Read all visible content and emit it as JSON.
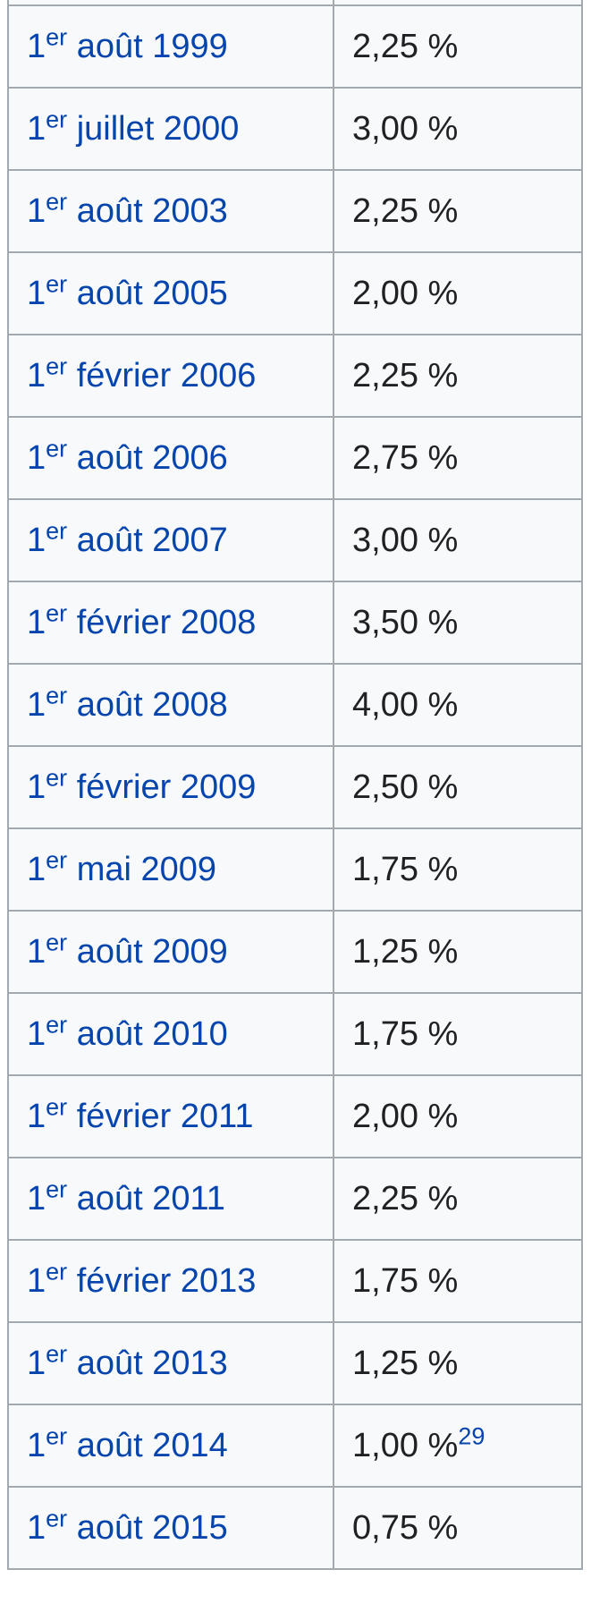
{
  "table": {
    "rows": [
      {
        "day": "",
        "ord": "",
        "rest": "",
        "rate": "",
        "ref": ""
      },
      {
        "day": "1",
        "ord": "er",
        "rest": " août 1999",
        "rate": "2,25 %",
        "ref": ""
      },
      {
        "day": "1",
        "ord": "er",
        "rest": " juillet 2000",
        "rate": "3,00 %",
        "ref": ""
      },
      {
        "day": "1",
        "ord": "er",
        "rest": " août 2003",
        "rate": "2,25 %",
        "ref": ""
      },
      {
        "day": "1",
        "ord": "er",
        "rest": " août 2005",
        "rate": "2,00 %",
        "ref": ""
      },
      {
        "day": "1",
        "ord": "er",
        "rest": " février 2006",
        "rate": "2,25 %",
        "ref": ""
      },
      {
        "day": "1",
        "ord": "er",
        "rest": " août 2006",
        "rate": "2,75 %",
        "ref": ""
      },
      {
        "day": "1",
        "ord": "er",
        "rest": " août 2007",
        "rate": "3,00 %",
        "ref": ""
      },
      {
        "day": "1",
        "ord": "er",
        "rest": " février 2008",
        "rate": "3,50 %",
        "ref": ""
      },
      {
        "day": "1",
        "ord": "er",
        "rest": " août 2008",
        "rate": "4,00 %",
        "ref": ""
      },
      {
        "day": "1",
        "ord": "er",
        "rest": " février 2009",
        "rate": "2,50 %",
        "ref": ""
      },
      {
        "day": "1",
        "ord": "er",
        "rest": " mai 2009",
        "rate": "1,75 %",
        "ref": ""
      },
      {
        "day": "1",
        "ord": "er",
        "rest": " août 2009",
        "rate": "1,25 %",
        "ref": ""
      },
      {
        "day": "1",
        "ord": "er",
        "rest": " août 2010",
        "rate": "1,75 %",
        "ref": ""
      },
      {
        "day": "1",
        "ord": "er",
        "rest": " février 2011",
        "rate": "2,00 %",
        "ref": ""
      },
      {
        "day": "1",
        "ord": "er",
        "rest": " août 2011",
        "rate": "2,25 %",
        "ref": ""
      },
      {
        "day": "1",
        "ord": "er",
        "rest": " février 2013",
        "rate": "1,75 %",
        "ref": ""
      },
      {
        "day": "1",
        "ord": "er",
        "rest": " août 2013",
        "rate": "1,25 %",
        "ref": ""
      },
      {
        "day": "1",
        "ord": "er",
        "rest": " août 2014",
        "rate": "1,00 %",
        "ref": "29"
      },
      {
        "day": "1",
        "ord": "er",
        "rest": " août 2015",
        "rate": "0,75 %",
        "ref": ""
      }
    ]
  }
}
